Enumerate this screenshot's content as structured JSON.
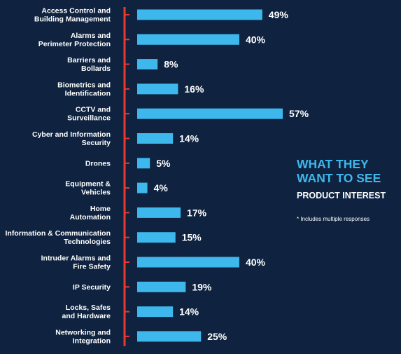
{
  "colors": {
    "background": "#0f2340",
    "bar": "#3db7ec",
    "axis": "#e8392f",
    "accent_text": "#3db7ec",
    "text": "#ffffff"
  },
  "side_panel": {
    "title_line1": "WHAT THEY",
    "title_line2": "WANT TO SEE",
    "subtitle": "PRODUCT INTEREST",
    "note": "* Includes multiple responses"
  },
  "chart_data": {
    "type": "bar",
    "orientation": "horizontal",
    "title": "",
    "xlabel": "",
    "ylabel": "",
    "unit": "%",
    "xlim": [
      0,
      57
    ],
    "grid": false,
    "categories": [
      [
        "Access Control and",
        "Building Management"
      ],
      [
        "Alarms and",
        "Perimeter Protection"
      ],
      [
        "Barriers and",
        "Bollards"
      ],
      [
        "Biometrics and",
        "Identification"
      ],
      [
        "CCTV and",
        "Surveillance"
      ],
      [
        "Cyber and Information",
        "Security"
      ],
      [
        "Drones"
      ],
      [
        "Equipment &",
        "Vehicles"
      ],
      [
        "Home",
        "Automation"
      ],
      [
        "Information & Communication",
        "Technologies"
      ],
      [
        "Intruder Alarms and",
        "Fire Safety"
      ],
      [
        "IP Security"
      ],
      [
        "Locks, Safes",
        "and Hardware"
      ],
      [
        "Networking and",
        "Integration"
      ]
    ],
    "values": [
      49,
      40,
      8,
      16,
      57,
      14,
      5,
      4,
      17,
      15,
      40,
      19,
      14,
      25
    ],
    "value_labels": [
      "49%",
      "40%",
      "8%",
      "16%",
      "57%",
      "14%",
      "5%",
      "4%",
      "17%",
      "15%",
      "40%",
      "19%",
      "14%",
      "25%"
    ]
  }
}
